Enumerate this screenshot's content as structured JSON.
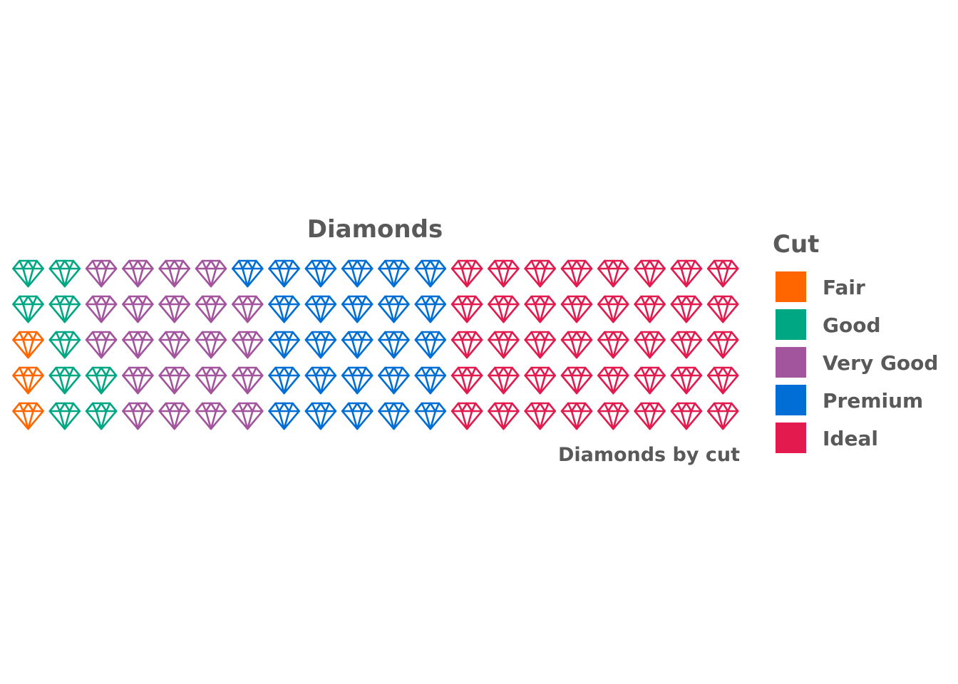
{
  "chart_data": {
    "type": "waffle",
    "title": "Diamonds",
    "caption": "Diamonds by cut",
    "icon": "diamond-icon",
    "rows": 5,
    "columns": 20,
    "legend": {
      "title": "Cut",
      "placement": "right"
    },
    "series": [
      {
        "name": "Fair",
        "value": 3,
        "color": "#FF6600"
      },
      {
        "name": "Good",
        "value": 9,
        "color": "#00A783"
      },
      {
        "name": "Very Good",
        "value": 22,
        "color": "#A2559D"
      },
      {
        "name": "Premium",
        "value": 26,
        "color": "#006ED5"
      },
      {
        "name": "Ideal",
        "value": 40,
        "color": "#E31A4E"
      }
    ]
  }
}
